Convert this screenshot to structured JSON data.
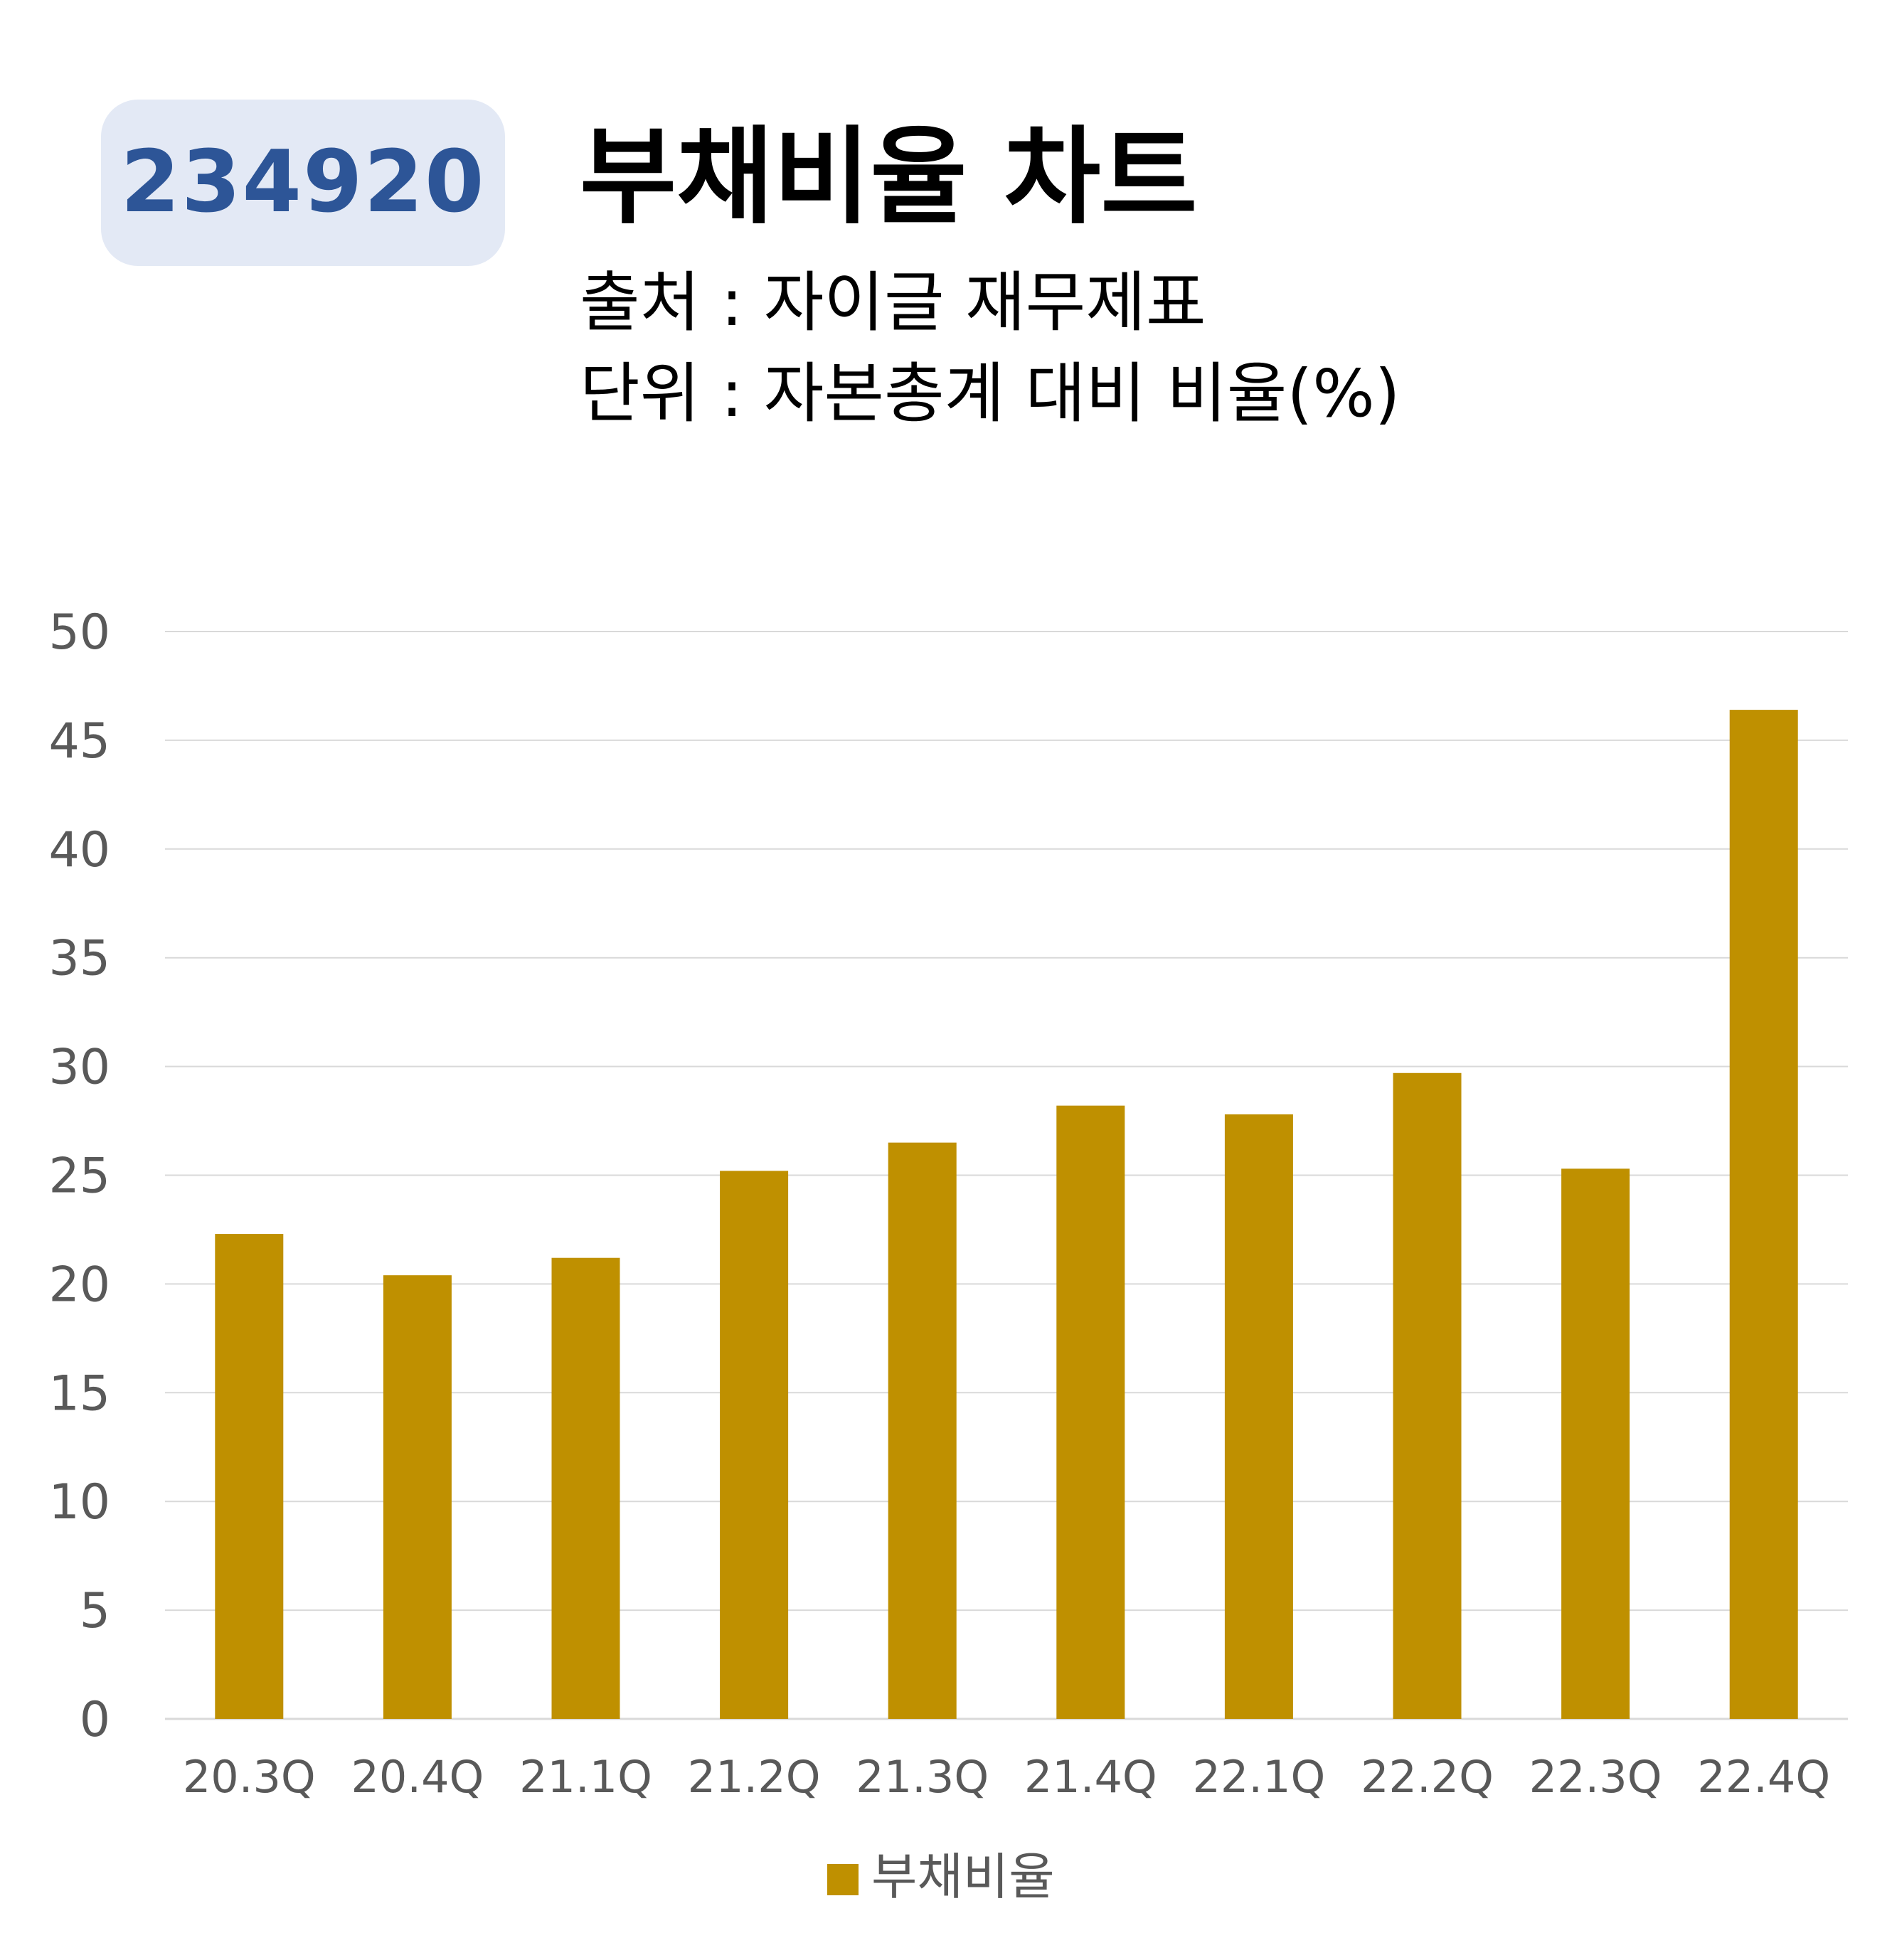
{
  "header": {
    "code": "234920",
    "title": "부채비율 차트",
    "source_line": "출처 : 자이글 재무제표",
    "unit_line": "단위 : 자본총계 대비 비율(%)"
  },
  "colors": {
    "bar": "#bf9000",
    "badge_bg": "#e3e9f5",
    "badge_text": "#2d5597",
    "grid": "#d9d9d9",
    "tick_text": "#595959"
  },
  "chart_data": {
    "type": "bar",
    "categories": [
      "20.3Q",
      "20.4Q",
      "21.1Q",
      "21.2Q",
      "21.3Q",
      "21.4Q",
      "22.1Q",
      "22.2Q",
      "22.3Q",
      "22.4Q"
    ],
    "series": [
      {
        "name": "부채비율",
        "values": [
          22.3,
          20.4,
          21.2,
          25.2,
          26.5,
          28.2,
          27.8,
          29.7,
          25.3,
          46.4
        ]
      }
    ],
    "ylim": [
      0,
      50
    ],
    "yticks": [
      0,
      5,
      10,
      15,
      20,
      25,
      30,
      35,
      40,
      45,
      50
    ],
    "grid": true,
    "legend": "bottom"
  }
}
